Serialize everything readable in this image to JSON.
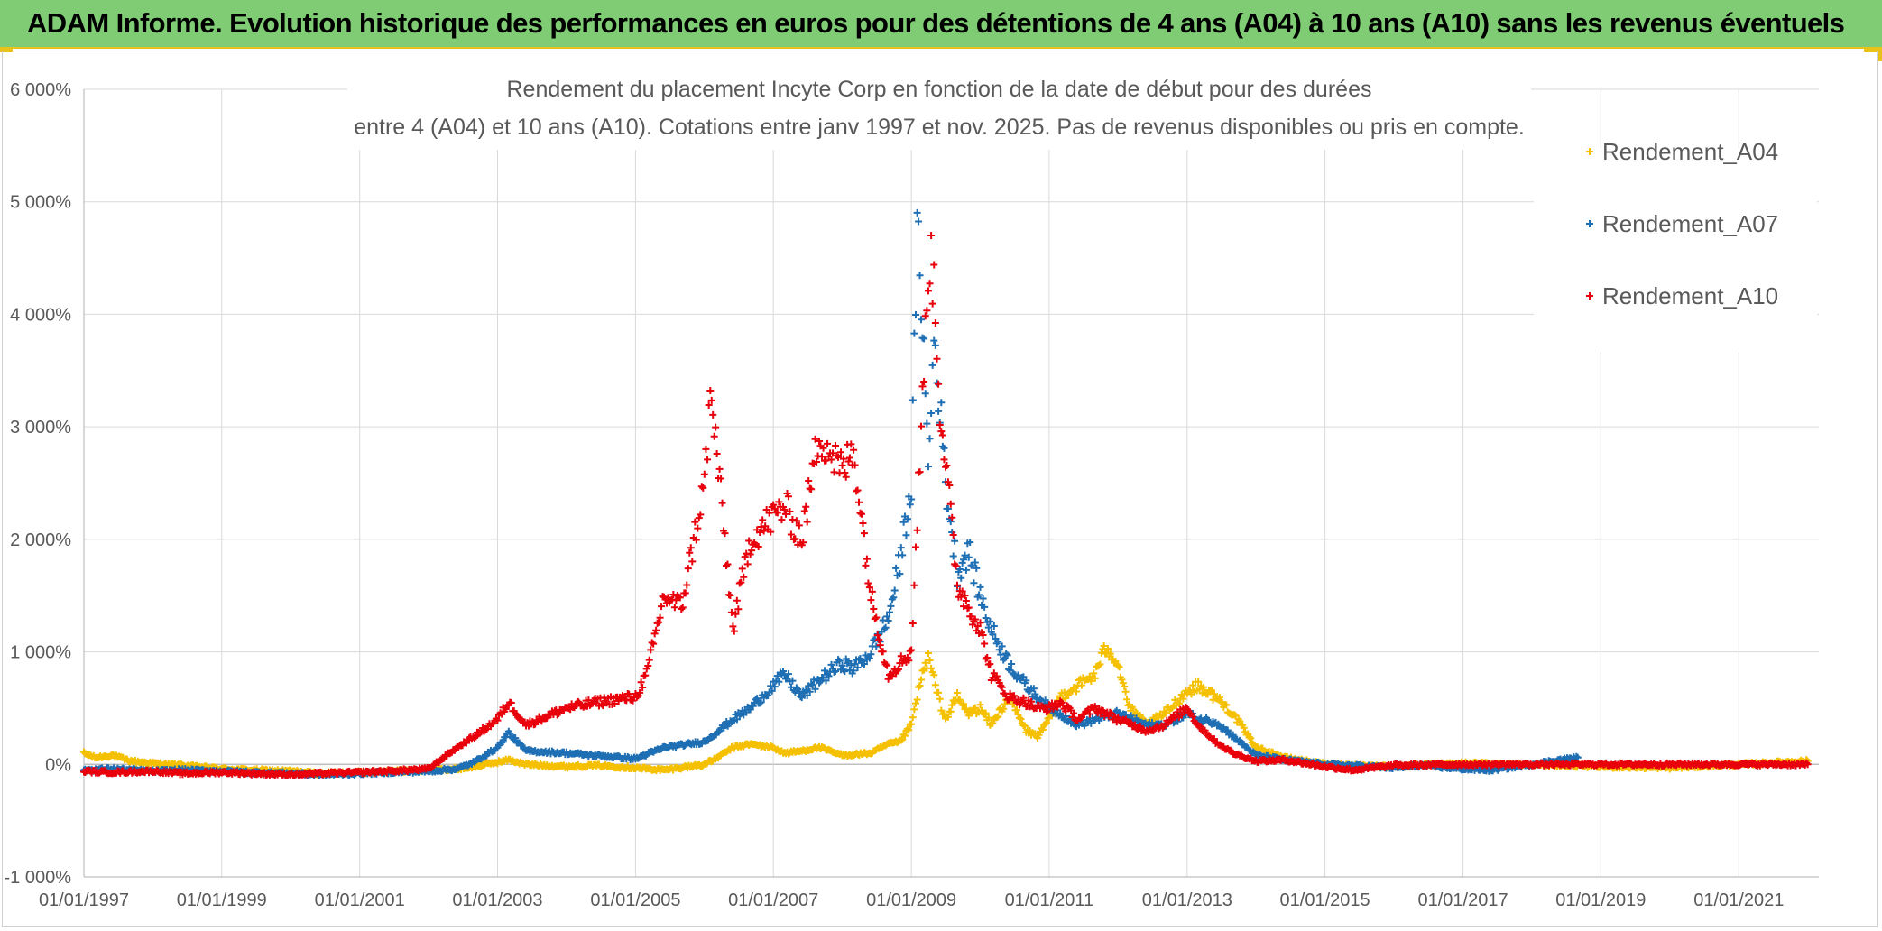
{
  "banner": {
    "title": "ADAM Informe. Evolution historique des performances en euros pour des détentions de 4 ans (A04) à 10 ans (A10) sans les revenus éventuels"
  },
  "colors": {
    "banner_bg": "#7fcc74",
    "accent_border": "#e8c21a",
    "a04": "#f5c000",
    "a07": "#1f6fb4",
    "a10": "#e8000b",
    "grid": "#d9d9d9"
  },
  "chart_data": {
    "type": "scatter",
    "title_lines": [
      "Rendement du placement Incyte Corp en fonction de la date de début pour des durées",
      "entre 4 (A04) et 10 ans (A10). Cotations entre janv 1997 et nov. 2025. Pas de revenus disponibles ou pris en compte."
    ],
    "x_axis": {
      "type": "date",
      "range": [
        "1997-01-01",
        "2022-03-01"
      ],
      "tick_labels": [
        "01/01/1997",
        "01/01/1999",
        "01/01/2001",
        "01/01/2003",
        "01/01/2005",
        "01/01/2007",
        "01/01/2009",
        "01/01/2011",
        "01/01/2013",
        "01/01/2015",
        "01/01/2017",
        "01/01/2019",
        "01/01/2021"
      ]
    },
    "y_axis": {
      "unit": "%",
      "range": [
        -1000,
        6000
      ],
      "ticks": [
        -1000,
        0,
        1000,
        2000,
        3000,
        4000,
        5000,
        6000
      ],
      "tick_labels": [
        "-1 000%",
        "0%",
        "1 000%",
        "2 000%",
        "3 000%",
        "4 000%",
        "5 000%",
        "6 000%"
      ]
    },
    "grid": true,
    "legend_position": "top-right",
    "marker": "+",
    "series": [
      {
        "name": "Rendement_A04",
        "color": "#f5c000",
        "points": [
          [
            "1997-01-01",
            100
          ],
          [
            "1997-03-01",
            60
          ],
          [
            "1997-06-01",
            80
          ],
          [
            "1997-09-01",
            30
          ],
          [
            "1998-01-01",
            10
          ],
          [
            "1998-06-01",
            -10
          ],
          [
            "1999-01-01",
            -40
          ],
          [
            "1999-06-01",
            -50
          ],
          [
            "2000-01-01",
            -60
          ],
          [
            "2000-06-01",
            -80
          ],
          [
            "2001-01-01",
            -70
          ],
          [
            "2001-06-01",
            -60
          ],
          [
            "2002-01-01",
            -50
          ],
          [
            "2002-06-01",
            -40
          ],
          [
            "2002-09-01",
            -20
          ],
          [
            "2003-01-01",
            20
          ],
          [
            "2003-03-01",
            40
          ],
          [
            "2003-06-01",
            0
          ],
          [
            "2004-01-01",
            -20
          ],
          [
            "2004-06-01",
            -10
          ],
          [
            "2005-01-01",
            -30
          ],
          [
            "2005-06-01",
            -50
          ],
          [
            "2006-01-01",
            0
          ],
          [
            "2006-03-01",
            50
          ],
          [
            "2006-06-01",
            150
          ],
          [
            "2006-09-01",
            180
          ],
          [
            "2007-01-01",
            150
          ],
          [
            "2007-03-01",
            100
          ],
          [
            "2007-06-01",
            120
          ],
          [
            "2007-09-01",
            150
          ],
          [
            "2008-01-01",
            80
          ],
          [
            "2008-06-01",
            100
          ],
          [
            "2008-09-01",
            180
          ],
          [
            "2008-11-01",
            200
          ],
          [
            "2009-01-01",
            350
          ],
          [
            "2009-02-01",
            600
          ],
          [
            "2009-03-01",
            800
          ],
          [
            "2009-04-01",
            950
          ],
          [
            "2009-05-01",
            750
          ],
          [
            "2009-06-01",
            550
          ],
          [
            "2009-07-01",
            400
          ],
          [
            "2009-09-01",
            600
          ],
          [
            "2009-11-01",
            450
          ],
          [
            "2010-01-01",
            500
          ],
          [
            "2010-03-01",
            350
          ],
          [
            "2010-06-01",
            600
          ],
          [
            "2010-09-01",
            300
          ],
          [
            "2010-11-01",
            250
          ],
          [
            "2011-01-01",
            400
          ],
          [
            "2011-03-01",
            600
          ],
          [
            "2011-06-01",
            700
          ],
          [
            "2011-09-01",
            800
          ],
          [
            "2011-11-01",
            1050
          ],
          [
            "2012-01-01",
            900
          ],
          [
            "2012-03-01",
            500
          ],
          [
            "2012-06-01",
            350
          ],
          [
            "2012-09-01",
            450
          ],
          [
            "2013-01-01",
            650
          ],
          [
            "2013-03-01",
            700
          ],
          [
            "2013-06-01",
            600
          ],
          [
            "2013-09-01",
            450
          ],
          [
            "2014-01-01",
            150
          ],
          [
            "2014-06-01",
            60
          ],
          [
            "2015-01-01",
            0
          ],
          [
            "2016-01-01",
            -20
          ],
          [
            "2017-01-01",
            10
          ],
          [
            "2018-01-01",
            0
          ],
          [
            "2019-01-01",
            -20
          ],
          [
            "2020-01-01",
            -30
          ],
          [
            "2021-01-01",
            0
          ],
          [
            "2022-01-01",
            30
          ]
        ]
      },
      {
        "name": "Rendement_A07",
        "color": "#1f6fb4",
        "points": [
          [
            "1997-01-01",
            -50
          ],
          [
            "1997-06-01",
            -40
          ],
          [
            "1998-01-01",
            -60
          ],
          [
            "1998-06-01",
            -50
          ],
          [
            "1999-01-01",
            -60
          ],
          [
            "1999-06-01",
            -70
          ],
          [
            "2000-01-01",
            -80
          ],
          [
            "2000-06-01",
            -90
          ],
          [
            "2001-01-01",
            -80
          ],
          [
            "2001-06-01",
            -70
          ],
          [
            "2002-01-01",
            -60
          ],
          [
            "2002-06-01",
            -40
          ],
          [
            "2002-09-01",
            20
          ],
          [
            "2003-01-01",
            150
          ],
          [
            "2003-03-01",
            280
          ],
          [
            "2003-06-01",
            120
          ],
          [
            "2004-01-01",
            100
          ],
          [
            "2004-06-01",
            80
          ],
          [
            "2005-01-01",
            50
          ],
          [
            "2005-06-01",
            150
          ],
          [
            "2006-01-01",
            200
          ],
          [
            "2006-06-01",
            400
          ],
          [
            "2006-09-01",
            500
          ],
          [
            "2007-01-01",
            700
          ],
          [
            "2007-03-01",
            800
          ],
          [
            "2007-06-01",
            600
          ],
          [
            "2007-09-01",
            750
          ],
          [
            "2008-01-01",
            900
          ],
          [
            "2008-03-01",
            850
          ],
          [
            "2008-06-01",
            1000
          ],
          [
            "2008-09-01",
            1300
          ],
          [
            "2008-11-01",
            1800
          ],
          [
            "2009-01-01",
            2500
          ],
          [
            "2009-02-01",
            4700
          ],
          [
            "2009-03-01",
            4000
          ],
          [
            "2009-04-01",
            2600
          ],
          [
            "2009-05-01",
            3800
          ],
          [
            "2009-06-01",
            3200
          ],
          [
            "2009-07-01",
            2500
          ],
          [
            "2009-09-01",
            1700
          ],
          [
            "2009-11-01",
            1900
          ],
          [
            "2010-01-01",
            1500
          ],
          [
            "2010-03-01",
            1200
          ],
          [
            "2010-06-01",
            900
          ],
          [
            "2010-09-01",
            700
          ],
          [
            "2010-11-01",
            600
          ],
          [
            "2011-01-01",
            500
          ],
          [
            "2011-03-01",
            450
          ],
          [
            "2011-06-01",
            350
          ],
          [
            "2011-09-01",
            400
          ],
          [
            "2012-01-01",
            450
          ],
          [
            "2012-06-01",
            350
          ],
          [
            "2012-09-01",
            350
          ],
          [
            "2013-01-01",
            450
          ],
          [
            "2013-03-01",
            400
          ],
          [
            "2013-06-01",
            380
          ],
          [
            "2013-09-01",
            250
          ],
          [
            "2014-01-01",
            80
          ],
          [
            "2014-06-01",
            40
          ],
          [
            "2015-01-01",
            0
          ],
          [
            "2016-01-01",
            -30
          ],
          [
            "2016-06-01",
            -10
          ],
          [
            "2017-01-01",
            -40
          ],
          [
            "2017-06-01",
            -50
          ],
          [
            "2018-01-01",
            0
          ],
          [
            "2018-06-01",
            40
          ],
          [
            "2018-09-01",
            60
          ]
        ]
      },
      {
        "name": "Rendement_A10",
        "color": "#e8000b",
        "points": [
          [
            "1997-01-01",
            -60
          ],
          [
            "1997-06-01",
            -70
          ],
          [
            "1998-01-01",
            -60
          ],
          [
            "1998-06-01",
            -80
          ],
          [
            "1999-01-01",
            -70
          ],
          [
            "1999-06-01",
            -80
          ],
          [
            "2000-01-01",
            -90
          ],
          [
            "2000-06-01",
            -80
          ],
          [
            "2001-01-01",
            -70
          ],
          [
            "2001-06-01",
            -60
          ],
          [
            "2002-01-01",
            -40
          ],
          [
            "2002-06-01",
            150
          ],
          [
            "2002-09-01",
            250
          ],
          [
            "2003-01-01",
            400
          ],
          [
            "2003-03-01",
            550
          ],
          [
            "2003-06-01",
            350
          ],
          [
            "2004-01-01",
            500
          ],
          [
            "2004-06-01",
            550
          ],
          [
            "2005-01-01",
            600
          ],
          [
            "2005-03-01",
            800
          ],
          [
            "2005-06-01",
            1500
          ],
          [
            "2005-09-01",
            1400
          ],
          [
            "2006-01-01",
            2500
          ],
          [
            "2006-02-01",
            3250
          ],
          [
            "2006-03-01",
            2900
          ],
          [
            "2006-06-01",
            1200
          ],
          [
            "2006-09-01",
            2000
          ],
          [
            "2007-01-01",
            2200
          ],
          [
            "2007-03-01",
            2300
          ],
          [
            "2007-06-01",
            2000
          ],
          [
            "2007-09-01",
            2950
          ],
          [
            "2008-01-01",
            2600
          ],
          [
            "2008-03-01",
            2800
          ],
          [
            "2008-06-01",
            1500
          ],
          [
            "2008-09-01",
            800
          ],
          [
            "2008-11-01",
            900
          ],
          [
            "2009-01-01",
            1000
          ],
          [
            "2009-02-01",
            2200
          ],
          [
            "2009-03-01",
            3200
          ],
          [
            "2009-04-01",
            4500
          ],
          [
            "2009-05-01",
            4300
          ],
          [
            "2009-06-01",
            3200
          ],
          [
            "2009-07-01",
            2700
          ],
          [
            "2009-09-01",
            1600
          ],
          [
            "2009-11-01",
            1400
          ],
          [
            "2010-01-01",
            1200
          ],
          [
            "2010-03-01",
            800
          ],
          [
            "2010-06-01",
            600
          ],
          [
            "2010-09-01",
            550
          ],
          [
            "2010-11-01",
            500
          ],
          [
            "2011-01-01",
            500
          ],
          [
            "2011-03-01",
            550
          ],
          [
            "2011-06-01",
            400
          ],
          [
            "2011-09-01",
            500
          ],
          [
            "2012-01-01",
            400
          ],
          [
            "2012-06-01",
            300
          ],
          [
            "2012-09-01",
            350
          ],
          [
            "2013-01-01",
            500
          ],
          [
            "2013-03-01",
            350
          ],
          [
            "2013-06-01",
            200
          ],
          [
            "2013-09-01",
            100
          ],
          [
            "2014-01-01",
            30
          ],
          [
            "2014-06-01",
            40
          ],
          [
            "2015-01-01",
            -20
          ],
          [
            "2015-06-01",
            -50
          ],
          [
            "2016-01-01",
            -10
          ],
          [
            "2017-01-01",
            0
          ],
          [
            "2018-01-01",
            0
          ],
          [
            "2019-01-01",
            0
          ],
          [
            "2020-01-01",
            0
          ],
          [
            "2021-01-01",
            0
          ],
          [
            "2022-01-01",
            0
          ]
        ]
      }
    ]
  }
}
